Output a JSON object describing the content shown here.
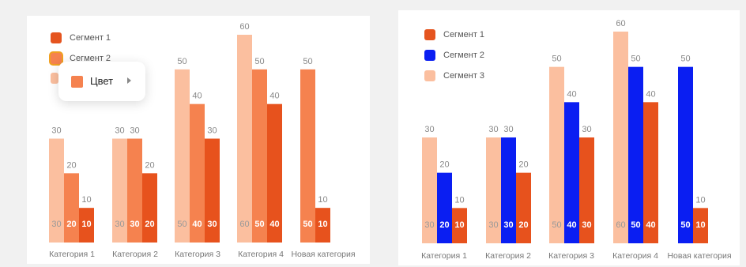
{
  "chart_data": [
    {
      "type": "bar",
      "categories": [
        "Категория 1",
        "Категория 2",
        "Категория 3",
        "Категория 4",
        "Новая категория"
      ],
      "series": [
        {
          "name": "Сегмент 1",
          "values": [
            30,
            30,
            50,
            60,
            null
          ],
          "color": "#fbbf9f"
        },
        {
          "name": "Сегмент 2",
          "values": [
            20,
            30,
            40,
            50,
            50
          ],
          "color": "#f5824f"
        },
        {
          "name": "Сегмент 3",
          "values": [
            10,
            20,
            30,
            40,
            10
          ],
          "color": "#e7521d"
        }
      ],
      "ylim": [
        0,
        60
      ],
      "grid": false,
      "legend": "top-left",
      "legend_entries": [
        "Сегмент 1",
        "Сегмент 2"
      ],
      "legend_colors": [
        "#e5541f",
        "#f5824f"
      ],
      "hidden_legend_color": "#fbbf9f",
      "popup": {
        "label": "Цвет",
        "swatch_color": "#f5824f"
      }
    },
    {
      "type": "bar",
      "categories": [
        "Категория 1",
        "Категория 2",
        "Категория 3",
        "Категория 4",
        "Новая категория"
      ],
      "series": [
        {
          "name": "Сегмент 3",
          "values": [
            30,
            30,
            50,
            60,
            null
          ],
          "color": "#fbbf9f"
        },
        {
          "name": "Сегмент 2",
          "values": [
            20,
            30,
            40,
            50,
            50
          ],
          "color": "#0a1ef2"
        },
        {
          "name": "Сегмент 1",
          "values": [
            10,
            20,
            30,
            40,
            10
          ],
          "color": "#e7521d"
        }
      ],
      "ylim": [
        0,
        60
      ],
      "grid": false,
      "legend": "top-left",
      "legend_entries": [
        "Сегмент 1",
        "Сегмент 2",
        "Сегмент 3"
      ],
      "legend_colors": [
        "#e5541f",
        "#0a1ef2",
        "#fbbf9f"
      ]
    }
  ]
}
